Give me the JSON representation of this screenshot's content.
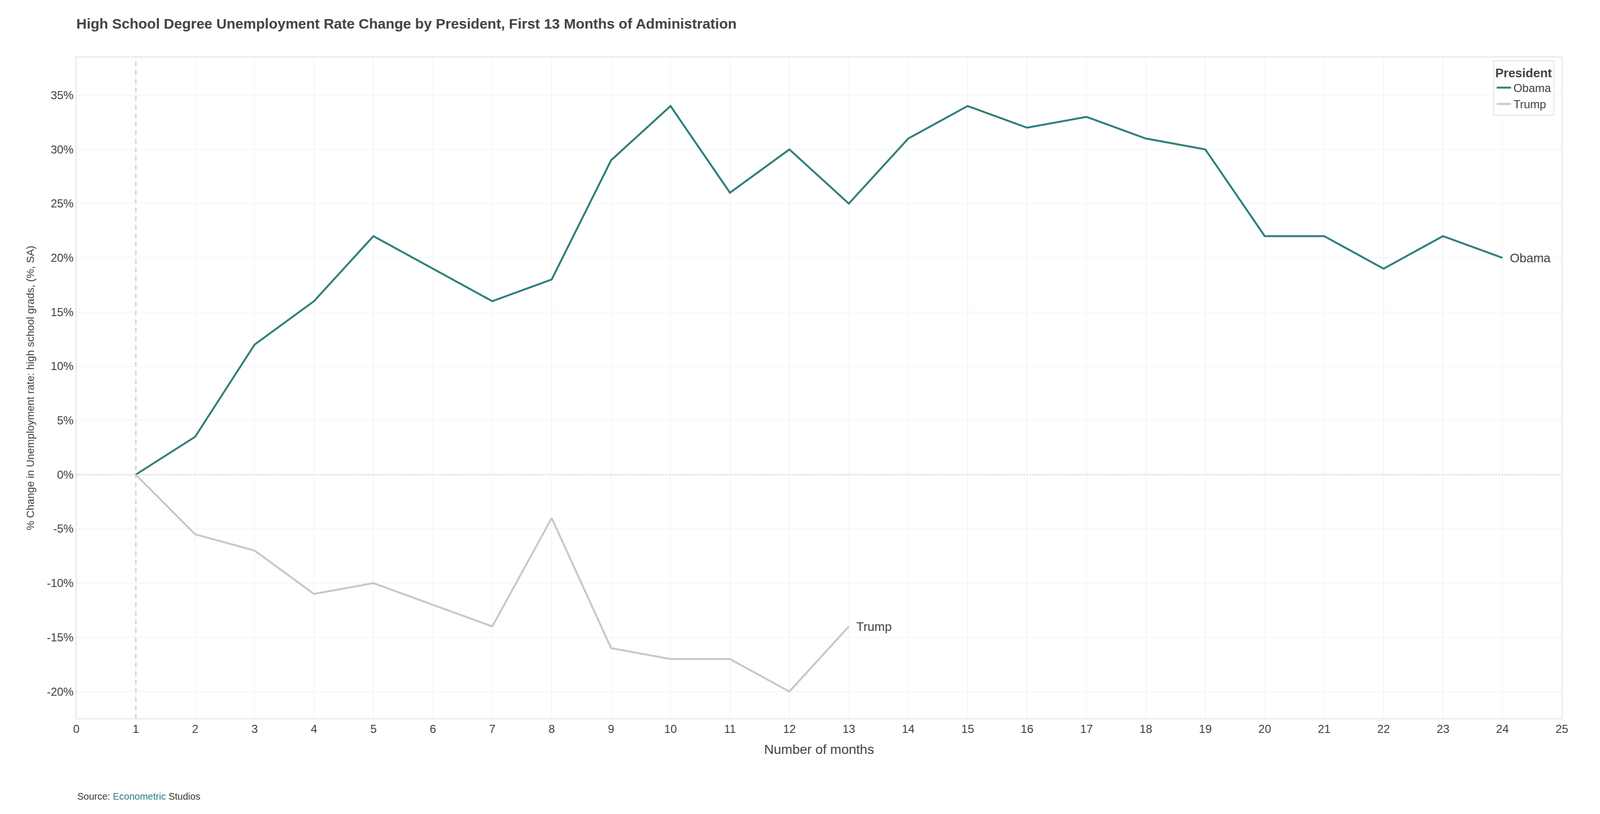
{
  "chart_data": {
    "type": "line",
    "title": "High School Degree Unemployment Rate Change by President, First 13 Months of Administration",
    "xlabel": "Number of months",
    "ylabel": "% Change in Unemployment rate: high school grads, (%, SA)",
    "x": [
      1,
      2,
      3,
      4,
      5,
      6,
      7,
      8,
      9,
      10,
      11,
      12,
      13,
      14,
      15,
      16,
      17,
      18,
      19,
      20,
      21,
      22,
      23,
      24
    ],
    "series": [
      {
        "name": "Obama",
        "color": "#2e7f7c",
        "values": [
          0.0,
          0.035,
          0.12,
          0.16,
          0.22,
          0.19,
          0.16,
          0.18,
          0.29,
          0.34,
          0.26,
          0.3,
          0.25,
          0.31,
          0.34,
          0.32,
          0.33,
          0.31,
          0.3,
          0.22,
          0.22,
          0.19,
          0.22,
          0.2
        ]
      },
      {
        "name": "Trump",
        "color": "#c8c8c8",
        "values": [
          0.0,
          -0.055,
          -0.07,
          -0.11,
          -0.1,
          -0.12,
          -0.14,
          -0.04,
          -0.16,
          -0.17,
          -0.17,
          -0.2,
          -0.14,
          null,
          null,
          null,
          null,
          null,
          null,
          null,
          null,
          null,
          null,
          null
        ]
      }
    ],
    "xlim": [
      0,
      25
    ],
    "ylim": [
      -0.225,
      0.385
    ],
    "xticks": [
      0,
      1,
      2,
      3,
      4,
      5,
      6,
      7,
      8,
      9,
      10,
      11,
      12,
      13,
      14,
      15,
      16,
      17,
      18,
      19,
      20,
      21,
      22,
      23,
      24,
      25
    ],
    "yticks": [
      {
        "value": -0.2,
        "label": "-20%"
      },
      {
        "value": -0.15,
        "label": "-15%"
      },
      {
        "value": -0.1,
        "label": "-10%"
      },
      {
        "value": -0.05,
        "label": "-5%"
      },
      {
        "value": 0,
        "label": "0%"
      },
      {
        "value": 0.05,
        "label": "5%"
      },
      {
        "value": 0.1,
        "label": "10%"
      },
      {
        "value": 0.15,
        "label": "15%"
      },
      {
        "value": 0.2,
        "label": "20%"
      },
      {
        "value": 0.25,
        "label": "25%"
      },
      {
        "value": 0.3,
        "label": "30%"
      },
      {
        "value": 0.35,
        "label": "35%"
      }
    ],
    "grid": true,
    "legend": "upper right",
    "legend_title": "President",
    "annotations": [
      "Obama",
      "Trump"
    ],
    "reference_lines": [
      {
        "axis": "y",
        "value": 0,
        "color": "#aaaaaa",
        "line_style": "dotted"
      },
      {
        "axis": "x",
        "value": 1,
        "color": "#888888",
        "line_style": "dashed"
      }
    ],
    "source": [
      {
        "text": "Source: ",
        "color": "#3d3d3d"
      },
      {
        "text": "Econometric",
        "color": "#2e7f7c"
      },
      {
        "text": " Studios",
        "color": "#3d3d3d"
      }
    ]
  }
}
